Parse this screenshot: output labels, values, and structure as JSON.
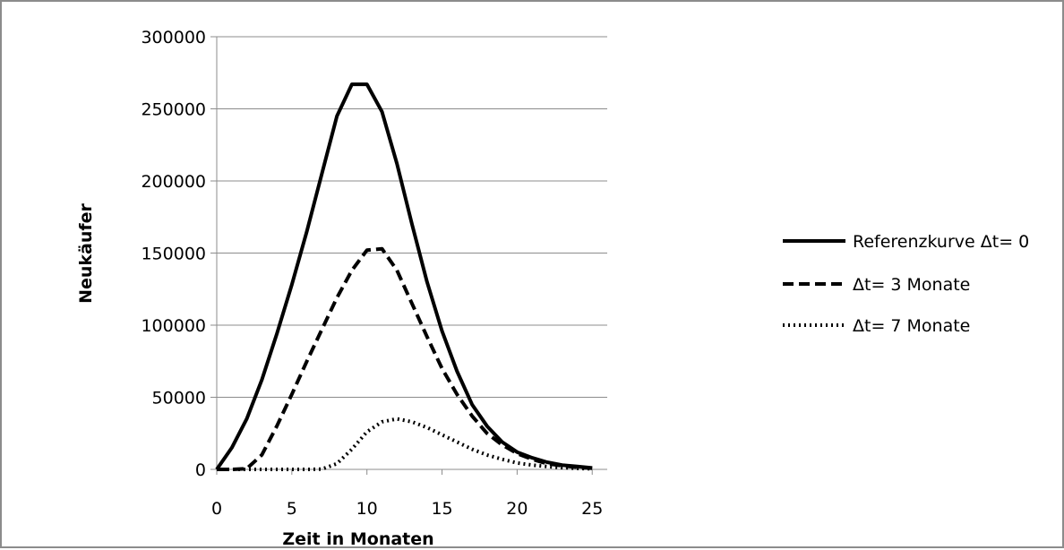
{
  "chart_data": {
    "type": "line",
    "xlabel": "Zeit in Monaten",
    "ylabel": "Neukäufer",
    "xlim": [
      0,
      26
    ],
    "ylim": [
      0,
      300000
    ],
    "xticks": [
      0,
      5,
      10,
      15,
      20,
      25
    ],
    "yticks": [
      0,
      50000,
      100000,
      150000,
      200000,
      250000,
      300000
    ],
    "grid": "horizontal",
    "legend_position": "right",
    "series": [
      {
        "name": "Referenzkurve Δt= 0",
        "style": "solid",
        "x": [
          0,
          1,
          2,
          3,
          4,
          5,
          6,
          7,
          8,
          9,
          10,
          11,
          12,
          13,
          14,
          15,
          16,
          17,
          18,
          19,
          20,
          21,
          22,
          23,
          24,
          25
        ],
        "y": [
          0,
          15000,
          35000,
          62000,
          94000,
          128000,
          165000,
          205000,
          245000,
          267000,
          267000,
          248000,
          212000,
          170000,
          130000,
          96000,
          68000,
          45000,
          30000,
          19000,
          12000,
          8000,
          5000,
          3000,
          2000,
          1000
        ]
      },
      {
        "name": "Δt= 3 Monate",
        "style": "dashed",
        "x": [
          0,
          1,
          2,
          3,
          4,
          5,
          6,
          7,
          8,
          9,
          10,
          11,
          12,
          13,
          14,
          15,
          16,
          17,
          18,
          19,
          20,
          21,
          22,
          23,
          24,
          25
        ],
        "y": [
          0,
          0,
          500,
          10000,
          30000,
          52000,
          75000,
          97000,
          119000,
          138000,
          152000,
          153000,
          138000,
          115000,
          92000,
          70000,
          52000,
          37000,
          25000,
          17000,
          11000,
          7000,
          4000,
          2500,
          1500,
          800
        ]
      },
      {
        "name": "Δt= 7 Monate",
        "style": "dotted",
        "x": [
          0,
          1,
          2,
          3,
          4,
          5,
          6,
          7,
          8,
          9,
          10,
          11,
          12,
          13,
          14,
          15,
          16,
          17,
          18,
          19,
          20,
          21,
          22,
          23,
          24,
          25
        ],
        "y": [
          0,
          0,
          0,
          0,
          0,
          0,
          0,
          200,
          4000,
          14000,
          26000,
          33000,
          35000,
          33000,
          29000,
          24000,
          19000,
          14000,
          10000,
          7000,
          4500,
          3000,
          2000,
          1200,
          700,
          400
        ]
      }
    ]
  }
}
